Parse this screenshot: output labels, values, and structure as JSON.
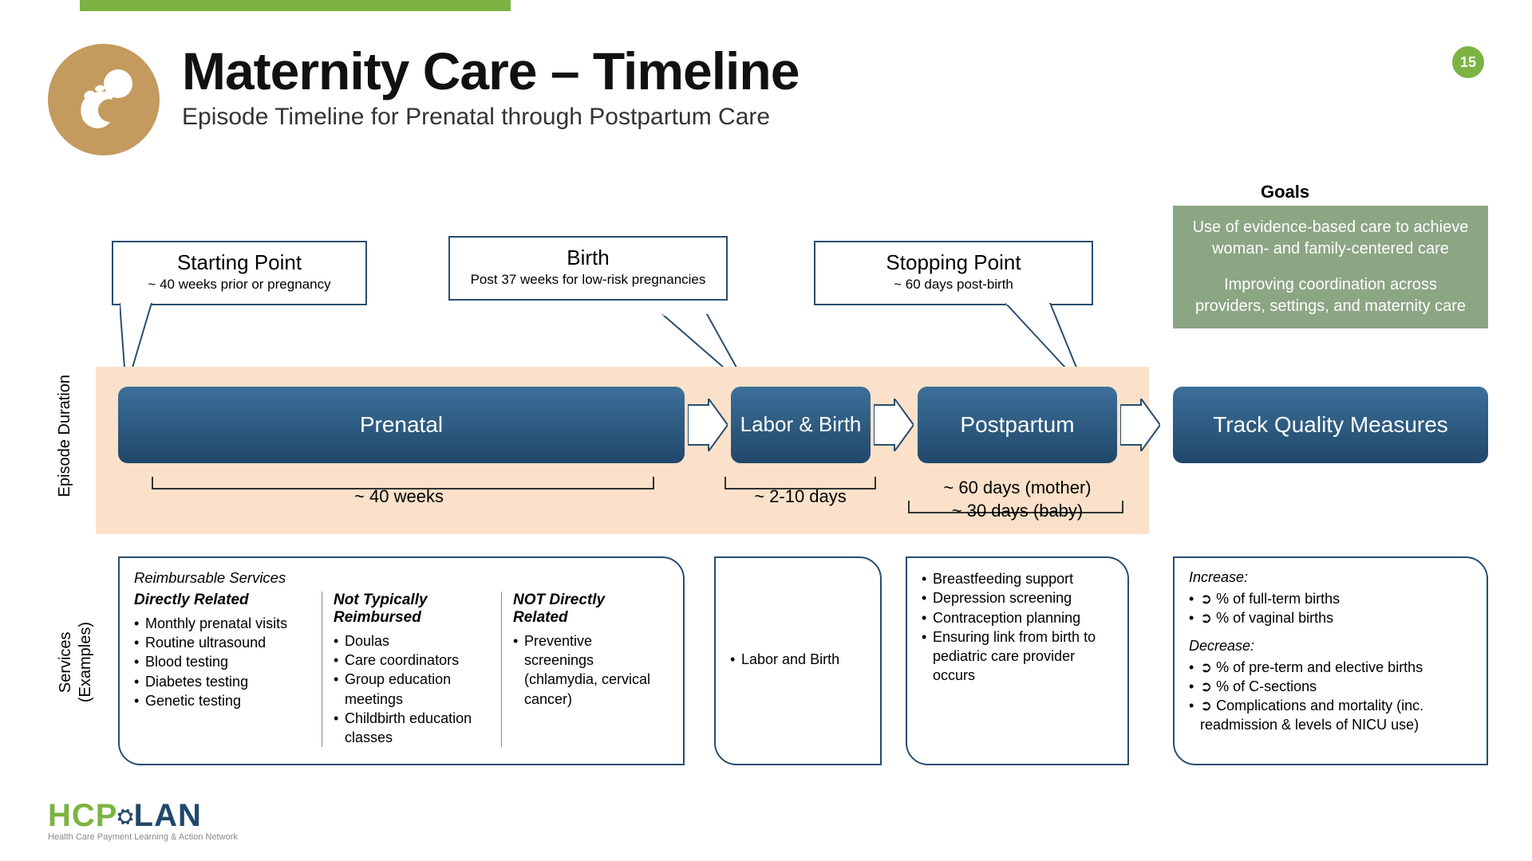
{
  "colors": {
    "accent_green": "#7cb342",
    "tan_icon": "#c49a5e",
    "phase_grad_top": "#3c6f99",
    "phase_grad_bottom": "#20486b",
    "band_bg": "#fbe1c9",
    "goals_bg": "#8ca583",
    "outline": "#2a4d6e"
  },
  "page_number": "15",
  "header": {
    "title": "Maternity Care – Timeline",
    "subtitle": "Episode Timeline for Prenatal through Postpartum Care"
  },
  "goals": {
    "label": "Goals",
    "p1": "Use of evidence-based care to achieve woman- and family-centered care",
    "p2": "Improving coordination across providers, settings, and maternity care"
  },
  "callouts": {
    "start": {
      "title": "Starting Point",
      "sub": "~ 40 weeks prior or pregnancy"
    },
    "birth": {
      "title": "Birth",
      "sub": "Post 37 weeks for  low-risk pregnancies"
    },
    "stop": {
      "title": "Stopping Point",
      "sub": "~ 60 days post-birth"
    }
  },
  "phases": {
    "prenatal": "Prenatal",
    "labor": "Labor & Birth",
    "postpartum": "Postpartum",
    "quality": "Track Quality Measures"
  },
  "durations": {
    "prenatal": "~ 40 weeks",
    "labor": "~ 2-10 days",
    "postpartum_l1": "~ 60 days (mother)",
    "postpartum_l2": "~ 30 days (baby)"
  },
  "side_labels": {
    "episode": "Episode Duration",
    "services": "Services\n(Examples)"
  },
  "services": {
    "prenatal": {
      "header": "Reimbursable Services",
      "col1": {
        "title": "Directly Related",
        "items": [
          "Monthly prenatal visits",
          "Routine ultrasound",
          "Blood testing",
          "Diabetes testing",
          "Genetic testing"
        ]
      },
      "col2": {
        "title": "Not Typically Reimbursed",
        "items": [
          "Doulas",
          "Care coordinators",
          "Group education meetings",
          "Childbirth education classes"
        ]
      },
      "col3": {
        "title": "NOT Directly Related",
        "items": [
          "Preventive screenings (chlamydia, cervical cancer)"
        ]
      }
    },
    "labor": {
      "items": [
        "Labor and Birth"
      ]
    },
    "postpartum": {
      "items": [
        "Breastfeeding support",
        "Depression screening",
        "Contraception planning",
        "Ensuring link from birth to pediatric care provider occurs"
      ]
    },
    "quality": {
      "increase_label": "Increase:",
      "increase": [
        "➲ % of full-term births",
        "➲ % of vaginal births"
      ],
      "decrease_label": "Decrease:",
      "decrease": [
        "➲ % of pre-term and elective births",
        "➲ % of C-sections",
        "➲ Complications and mortality (inc. readmission & levels of NICU use)"
      ]
    }
  },
  "footer": {
    "hcp": "HCP",
    "lan": "LAN",
    "tag": "Health Care Payment Learning & Action Network"
  }
}
